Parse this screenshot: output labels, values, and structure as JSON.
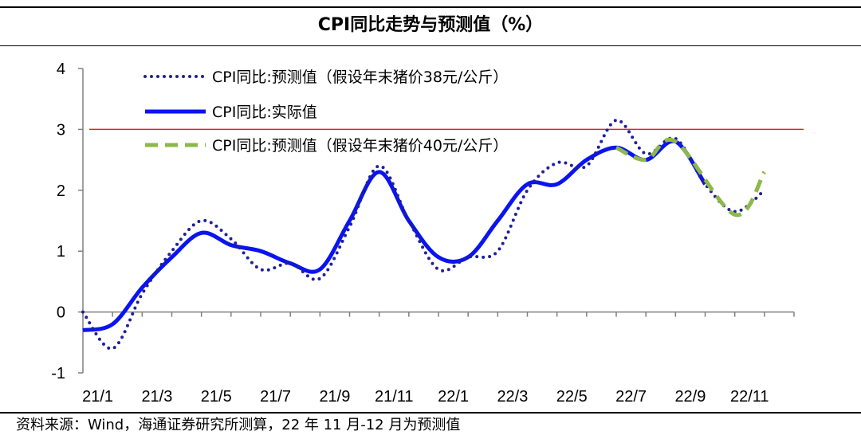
{
  "title": "CPI同比走势与预测值（%）",
  "source": "资料来源：Wind，海通证券研究所测算，22 年 11 月-12 月为预测值",
  "chart_data": {
    "type": "line",
    "title": "CPI同比走势与预测值（%）",
    "xlabel": "",
    "ylabel": "",
    "ylim": [
      -1,
      4
    ],
    "yticks": [
      "-1",
      "0",
      "1",
      "2",
      "3",
      "4"
    ],
    "x_tick_labels": [
      "21/1",
      "21/3",
      "21/5",
      "21/7",
      "21/9",
      "21/11",
      "22/1",
      "22/3",
      "22/5",
      "22/7",
      "22/9",
      "22/11"
    ],
    "grid": false,
    "legend_position": "top-left",
    "reference_line": {
      "y": 3,
      "color": "#e02020"
    },
    "series": [
      {
        "name": "CPI同比:预测值（假设年末猪价38元/公斤）",
        "style": "dotted",
        "color": "#1f1f99",
        "x": [
          "2021-01",
          "2021-02",
          "2021-03",
          "2021-04",
          "2021-05",
          "2021-06",
          "2021-07",
          "2021-08",
          "2021-09",
          "2021-10",
          "2021-11",
          "2021-12",
          "2022-01",
          "2022-02",
          "2022-03",
          "2022-04",
          "2022-05",
          "2022-06",
          "2022-07",
          "2022-08",
          "2022-09",
          "2022-10",
          "2022-11",
          "2022-12"
        ],
        "values": [
          0.0,
          -0.6,
          0.3,
          1.0,
          1.5,
          1.2,
          0.7,
          0.8,
          0.55,
          1.4,
          2.4,
          1.5,
          0.7,
          0.9,
          1.0,
          2.0,
          2.45,
          2.4,
          3.15,
          2.6,
          2.85,
          2.1,
          1.65,
          2.0
        ]
      },
      {
        "name": "CPI同比:实际值",
        "style": "solid",
        "color": "#0a14f0",
        "x": [
          "2021-01",
          "2021-02",
          "2021-03",
          "2021-04",
          "2021-05",
          "2021-06",
          "2021-07",
          "2021-08",
          "2021-09",
          "2021-10",
          "2021-11",
          "2021-12",
          "2022-01",
          "2022-02",
          "2022-03",
          "2022-04",
          "2022-05",
          "2022-06",
          "2022-07",
          "2022-08",
          "2022-09",
          "2022-10"
        ],
        "values": [
          -0.3,
          -0.2,
          0.4,
          0.9,
          1.3,
          1.1,
          1.0,
          0.8,
          0.7,
          1.5,
          2.3,
          1.5,
          0.9,
          0.9,
          1.5,
          2.1,
          2.1,
          2.5,
          2.7,
          2.5,
          2.8,
          2.1
        ]
      },
      {
        "name": "CPI同比:预测值（假设年末猪价40元/公斤）",
        "style": "dashed",
        "color": "#8db84a",
        "x": [
          "2022-07",
          "2022-08",
          "2022-09",
          "2022-11",
          "2022-12"
        ],
        "values": [
          2.7,
          2.5,
          2.8,
          1.6,
          2.3
        ]
      }
    ]
  }
}
